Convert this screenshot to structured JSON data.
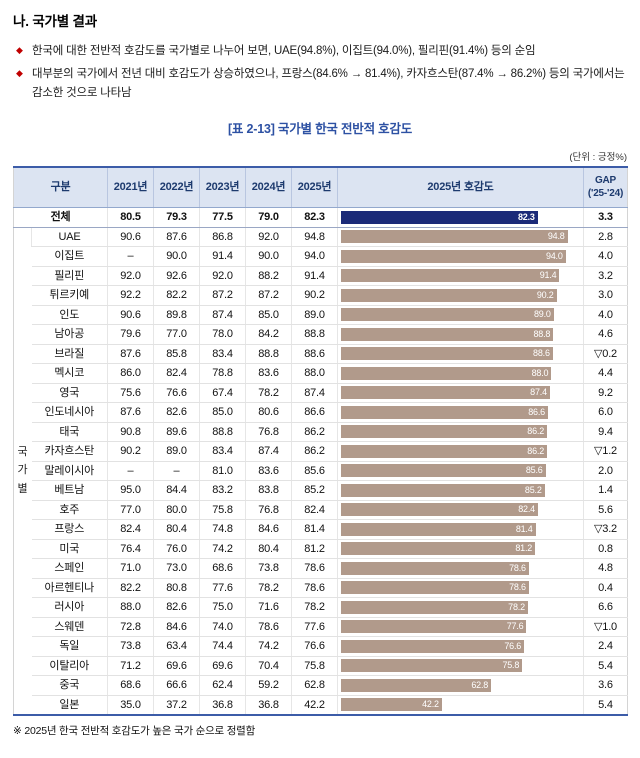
{
  "page": {
    "title": "나. 국가별 결과",
    "bullets": [
      "한국에 대한 전반적 호감도를 국가별로 나누어 보면, UAE(94.8%), 이집트(94.0%), 필리핀(91.4%) 등의 순임",
      "대부분의 국가에서 전년 대비 호감도가 상승하였으나, 프랑스(84.6% → 81.4%), 카자흐스탄(87.4% → 86.2%) 등의 국가에서는 감소한 것으로 나타남"
    ],
    "table_title": "[표 2-13] 국가별 한국 전반적 호감도",
    "unit_note": "(단위 : 긍정%)",
    "footnote": "※ 2025년 한국 전반적 호감도가 높은 국가 순으로 정렬함"
  },
  "colors": {
    "total_bar": "#1b2a78",
    "country_bar": "#b19a8b",
    "header_bg": "#dce4f2",
    "header_text": "#1d3a6e",
    "table_border": "#3c5ca8",
    "title_blue": "#2d51a3",
    "bullet": "#c00000"
  },
  "table": {
    "group_label": "국가별",
    "headers": [
      "구분",
      "2021년",
      "2022년",
      "2023년",
      "2024년",
      "2025년",
      "2025년 호감도"
    ],
    "gap_header": [
      "GAP",
      "('25-'24)"
    ],
    "rows": [
      {
        "label": "전체",
        "values": [
          "80.5",
          "79.3",
          "77.5",
          "79.0",
          "82.3"
        ],
        "gap": "3.3",
        "total": true
      },
      {
        "label": "UAE",
        "values": [
          "90.6",
          "87.6",
          "86.8",
          "92.0",
          "94.8"
        ],
        "gap": "2.8"
      },
      {
        "label": "이집트",
        "values": [
          "–",
          "90.0",
          "91.4",
          "90.0",
          "94.0"
        ],
        "gap": "4.0"
      },
      {
        "label": "필리핀",
        "values": [
          "92.0",
          "92.6",
          "92.0",
          "88.2",
          "91.4"
        ],
        "gap": "3.2"
      },
      {
        "label": "튀르키예",
        "values": [
          "92.2",
          "82.2",
          "87.2",
          "87.2",
          "90.2"
        ],
        "gap": "3.0"
      },
      {
        "label": "인도",
        "values": [
          "90.6",
          "89.8",
          "87.4",
          "85.0",
          "89.0"
        ],
        "gap": "4.0"
      },
      {
        "label": "남아공",
        "values": [
          "79.6",
          "77.0",
          "78.0",
          "84.2",
          "88.8"
        ],
        "gap": "4.6"
      },
      {
        "label": "브라질",
        "values": [
          "87.6",
          "85.8",
          "83.4",
          "88.8",
          "88.6"
        ],
        "gap": "▽0.2"
      },
      {
        "label": "멕시코",
        "values": [
          "86.0",
          "82.4",
          "78.8",
          "83.6",
          "88.0"
        ],
        "gap": "4.4"
      },
      {
        "label": "영국",
        "values": [
          "75.6",
          "76.6",
          "67.4",
          "78.2",
          "87.4"
        ],
        "gap": "9.2"
      },
      {
        "label": "인도네시아",
        "values": [
          "87.6",
          "82.6",
          "85.0",
          "80.6",
          "86.6"
        ],
        "gap": "6.0"
      },
      {
        "label": "태국",
        "values": [
          "90.8",
          "89.6",
          "88.8",
          "76.8",
          "86.2"
        ],
        "gap": "9.4"
      },
      {
        "label": "카자흐스탄",
        "values": [
          "90.2",
          "89.0",
          "83.4",
          "87.4",
          "86.2"
        ],
        "gap": "▽1.2"
      },
      {
        "label": "말레이시아",
        "values": [
          "–",
          "–",
          "81.0",
          "83.6",
          "85.6"
        ],
        "gap": "2.0"
      },
      {
        "label": "베트남",
        "values": [
          "95.0",
          "84.4",
          "83.2",
          "83.8",
          "85.2"
        ],
        "gap": "1.4"
      },
      {
        "label": "호주",
        "values": [
          "77.0",
          "80.0",
          "75.8",
          "76.8",
          "82.4"
        ],
        "gap": "5.6"
      },
      {
        "label": "프랑스",
        "values": [
          "82.4",
          "80.4",
          "74.8",
          "84.6",
          "81.4"
        ],
        "gap": "▽3.2"
      },
      {
        "label": "미국",
        "values": [
          "76.4",
          "76.0",
          "74.2",
          "80.4",
          "81.2"
        ],
        "gap": "0.8"
      },
      {
        "label": "스페인",
        "values": [
          "71.0",
          "73.0",
          "68.6",
          "73.8",
          "78.6"
        ],
        "gap": "4.8"
      },
      {
        "label": "아르헨티나",
        "values": [
          "82.2",
          "80.8",
          "77.6",
          "78.2",
          "78.6"
        ],
        "gap": "0.4"
      },
      {
        "label": "러시아",
        "values": [
          "88.0",
          "82.6",
          "75.0",
          "71.6",
          "78.2"
        ],
        "gap": "6.6"
      },
      {
        "label": "스웨덴",
        "values": [
          "72.8",
          "84.6",
          "74.0",
          "78.6",
          "77.6"
        ],
        "gap": "▽1.0"
      },
      {
        "label": "독일",
        "values": [
          "73.8",
          "63.4",
          "74.4",
          "74.2",
          "76.6"
        ],
        "gap": "2.4"
      },
      {
        "label": "이탈리아",
        "values": [
          "71.2",
          "69.6",
          "69.6",
          "70.4",
          "75.8"
        ],
        "gap": "5.4"
      },
      {
        "label": "중국",
        "values": [
          "68.6",
          "66.6",
          "62.4",
          "59.2",
          "62.8"
        ],
        "gap": "3.6"
      },
      {
        "label": "일본",
        "values": [
          "35.0",
          "37.2",
          "36.8",
          "36.8",
          "42.2"
        ],
        "gap": "5.4"
      }
    ]
  },
  "chart_data": {
    "type": "bar",
    "orientation": "horizontal",
    "title": "2025년 호감도",
    "categories": [
      "전체",
      "UAE",
      "이집트",
      "필리핀",
      "튀르키예",
      "인도",
      "남아공",
      "브라질",
      "멕시코",
      "영국",
      "인도네시아",
      "태국",
      "카자흐스탄",
      "말레이시아",
      "베트남",
      "호주",
      "프랑스",
      "미국",
      "스페인",
      "아르헨티나",
      "러시아",
      "스웨덴",
      "독일",
      "이탈리아",
      "중국",
      "일본"
    ],
    "values": [
      82.3,
      94.8,
      94.0,
      91.4,
      90.2,
      89.0,
      88.8,
      88.6,
      88.0,
      87.4,
      86.6,
      86.2,
      86.2,
      85.6,
      85.2,
      82.4,
      81.4,
      81.2,
      78.6,
      78.6,
      78.2,
      77.6,
      76.6,
      75.8,
      62.8,
      42.2
    ],
    "xlim": [
      0,
      100
    ],
    "value_labels": true,
    "highlight_category": "전체"
  }
}
